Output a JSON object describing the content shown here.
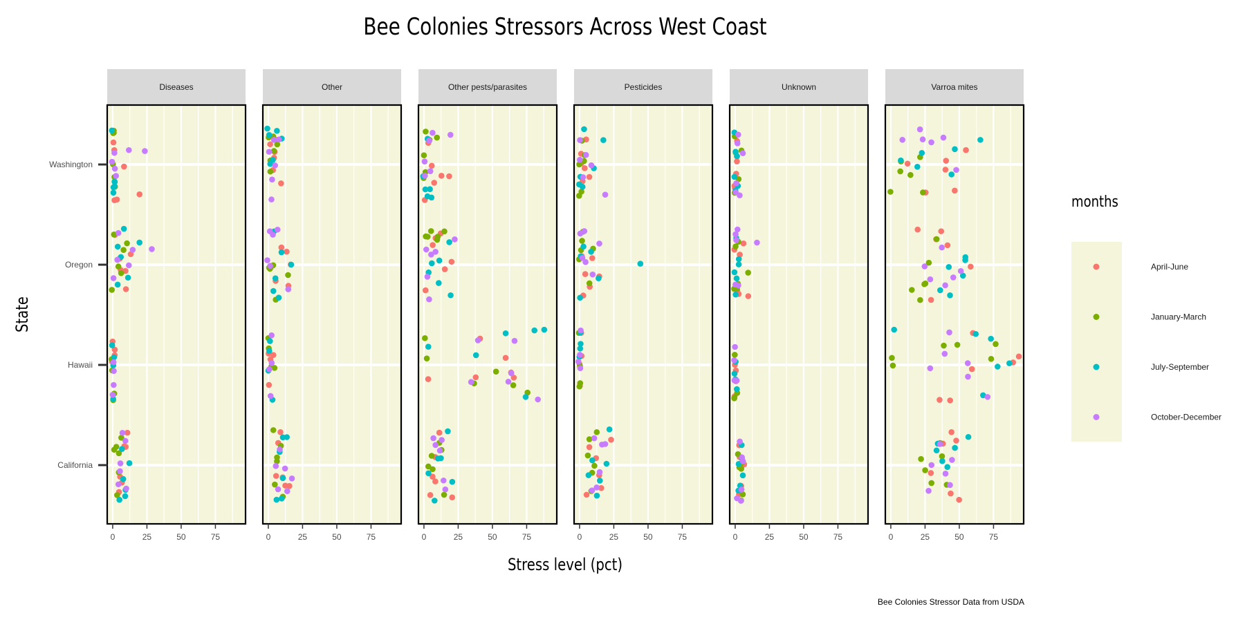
{
  "chart_data": {
    "type": "scatter",
    "title": "Bee Colonies Stressors Across West Coast",
    "xlabel": "Stress level (pct)",
    "ylabel": "State",
    "caption": "Bee Colonies Stressor Data from USDA",
    "x_ticks": [
      0,
      25,
      50,
      75
    ],
    "xlim": [
      -4,
      97
    ],
    "y_categories": [
      "Washington",
      "Oregon",
      "Hawaii",
      "California"
    ],
    "facets": [
      "Diseases",
      "Other",
      "Other pests/parasites",
      "Pesticides",
      "Unknown",
      "Varroa mites"
    ],
    "legend": {
      "title": "months",
      "placement": "right",
      "entries": [
        {
          "label": "April-June",
          "color": "#F8766D"
        },
        {
          "label": "January-March",
          "color": "#7CAE00"
        },
        {
          "label": "July-September",
          "color": "#00BFC4"
        },
        {
          "label": "October-December",
          "color": "#C77CFF"
        }
      ]
    },
    "panel_background": "#f5f5dc",
    "grid": true,
    "points": {
      "Diseases": [
        [
          "Washington",
          "April-June",
          [
            1,
            3,
            8,
            19,
            2,
            1
          ]
        ],
        [
          "Washington",
          "January-March",
          [
            0,
            1,
            2,
            1,
            0,
            0
          ]
        ],
        [
          "Washington",
          "July-September",
          [
            1,
            2,
            0,
            1,
            0,
            1
          ]
        ],
        [
          "Washington",
          "October-December",
          [
            2,
            3,
            12,
            23,
            1,
            0
          ]
        ],
        [
          "Oregon",
          "April-June",
          [
            5,
            10,
            13,
            9,
            6,
            2
          ]
        ],
        [
          "Oregon",
          "January-March",
          [
            4,
            8,
            1,
            10,
            0,
            6
          ]
        ],
        [
          "Oregon",
          "July-September",
          [
            3,
            6,
            11,
            20,
            8,
            4
          ]
        ],
        [
          "Oregon",
          "October-December",
          [
            3,
            12,
            15,
            28,
            4,
            0
          ]
        ],
        [
          "Hawaii",
          "April-June",
          [
            0,
            1,
            0,
            1
          ]
        ],
        [
          "Hawaii",
          "January-March",
          [
            0,
            1,
            0,
            1
          ]
        ],
        [
          "Hawaii",
          "July-September",
          [
            0,
            0,
            1,
            0
          ]
        ],
        [
          "Hawaii",
          "October-December",
          [
            0,
            0,
            1,
            0
          ]
        ],
        [
          "California",
          "April-June",
          [
            7,
            4,
            10,
            11,
            6,
            8
          ]
        ],
        [
          "California",
          "January-March",
          [
            1,
            5,
            3,
            2,
            6,
            4
          ]
        ],
        [
          "California",
          "July-September",
          [
            8,
            10,
            7,
            12,
            9,
            5
          ]
        ],
        [
          "California",
          "October-December",
          [
            6,
            9,
            4,
            7,
            5,
            10
          ]
        ]
      ],
      "Other": [
        [
          "Washington",
          "April-June",
          [
            6,
            4,
            2,
            10,
            3,
            5
          ]
        ],
        [
          "Washington",
          "January-March",
          [
            1,
            7,
            2,
            4,
            0,
            3
          ]
        ],
        [
          "Washington",
          "July-September",
          [
            9,
            1,
            3,
            6,
            0,
            2
          ]
        ],
        [
          "Washington",
          "October-December",
          [
            3,
            8,
            1,
            5,
            2,
            4
          ]
        ],
        [
          "Oregon",
          "April-June",
          [
            15,
            16,
            6,
            3,
            14,
            10
          ]
        ],
        [
          "Oregon",
          "January-March",
          [
            1,
            0,
            3,
            15,
            2,
            5
          ]
        ],
        [
          "Oregon",
          "July-September",
          [
            5,
            9,
            16,
            7,
            3,
            4
          ]
        ],
        [
          "Oregon",
          "October-December",
          [
            3,
            1,
            6,
            14,
            0,
            2
          ]
        ],
        [
          "Hawaii",
          "April-June",
          [
            1,
            2,
            0,
            3
          ]
        ],
        [
          "Hawaii",
          "January-March",
          [
            4,
            0,
            2,
            1
          ]
        ],
        [
          "Hawaii",
          "July-September",
          [
            2,
            1,
            3,
            0
          ]
        ],
        [
          "Hawaii",
          "October-December",
          [
            1,
            0,
            2,
            3
          ]
        ],
        [
          "California",
          "April-June",
          [
            5,
            8,
            12,
            15,
            9,
            11
          ]
        ],
        [
          "California",
          "January-March",
          [
            6,
            9,
            4,
            10,
            7,
            5
          ]
        ],
        [
          "California",
          "July-September",
          [
            10,
            14,
            8,
            6,
            11,
            9
          ]
        ],
        [
          "California",
          "October-December",
          [
            17,
            7,
            12,
            5,
            9,
            13
          ]
        ]
      ],
      "Other pests/parasites": [
        [
          "Washington",
          "April-June",
          [
            12,
            19,
            1,
            3,
            5,
            8
          ]
        ],
        [
          "Washington",
          "January-March",
          [
            2,
            0,
            9,
            1,
            4,
            0
          ]
        ],
        [
          "Washington",
          "July-September",
          [
            0,
            3,
            5,
            1,
            2,
            6
          ]
        ],
        [
          "Washington",
          "October-December",
          [
            1,
            5,
            20,
            4,
            0,
            6
          ]
        ],
        [
          "Oregon",
          "April-June",
          [
            20,
            9,
            12,
            1,
            15,
            7
          ]
        ],
        [
          "Oregon",
          "January-March",
          [
            2,
            6,
            10,
            15,
            9,
            3
          ]
        ],
        [
          "Oregon",
          "July-September",
          [
            10,
            12,
            18,
            20,
            5,
            3
          ]
        ],
        [
          "Oregon",
          "October-December",
          [
            2,
            5,
            22,
            4,
            1,
            9
          ]
        ],
        [
          "Hawaii",
          "April-June",
          [
            3,
            38,
            63,
            65,
            41,
            59
          ]
        ],
        [
          "Hawaii",
          "January-March",
          [
            1,
            37,
            52,
            65,
            76,
            2
          ]
        ],
        [
          "Hawaii",
          "July-September",
          [
            4,
            38,
            74,
            81,
            88,
            60
          ]
        ],
        [
          "Hawaii",
          "October-December",
          [
            35,
            40,
            66,
            83,
            61,
            64
          ]
        ],
        [
          "California",
          "April-June",
          [
            6,
            8,
            12,
            9,
            21,
            5
          ]
        ],
        [
          "California",
          "January-March",
          [
            5,
            11,
            15,
            6,
            3,
            13
          ]
        ],
        [
          "California",
          "July-September",
          [
            8,
            11,
            17,
            20,
            12,
            4
          ]
        ],
        [
          "California",
          "October-December",
          [
            7,
            13,
            16,
            11,
            9,
            15
          ]
        ]
      ],
      "Pesticides": [
        [
          "Washington",
          "April-June",
          [
            7,
            4,
            2,
            1,
            3,
            5
          ]
        ],
        [
          "Washington",
          "January-March",
          [
            0,
            2,
            4,
            1,
            3,
            0
          ]
        ],
        [
          "Washington",
          "July-September",
          [
            18,
            10,
            3,
            1,
            0,
            2
          ]
        ],
        [
          "Washington",
          "October-December",
          [
            9,
            19,
            2,
            4,
            0,
            1
          ]
        ],
        [
          "Oregon",
          "April-June",
          [
            10,
            14,
            3,
            7,
            2,
            4
          ]
        ],
        [
          "Oregon",
          "January-March",
          [
            8,
            10,
            1,
            3,
            0,
            2
          ]
        ],
        [
          "Oregon",
          "July-September",
          [
            45,
            9,
            1,
            14,
            3,
            0
          ]
        ],
        [
          "Oregon",
          "October-December",
          [
            14,
            2,
            9,
            3,
            1,
            5
          ]
        ],
        [
          "Hawaii",
          "April-June",
          [
            0,
            1,
            0,
            1
          ]
        ],
        [
          "Hawaii",
          "January-March",
          [
            0,
            1,
            0,
            0
          ]
        ],
        [
          "Hawaii",
          "July-September",
          [
            1,
            0,
            1,
            0
          ]
        ],
        [
          "Hawaii",
          "October-December",
          [
            0,
            1,
            0,
            1
          ]
        ],
        [
          "California",
          "April-June",
          [
            12,
            14,
            16,
            23,
            7,
            5
          ]
        ],
        [
          "California",
          "January-March",
          [
            6,
            9,
            11,
            7,
            12,
            8
          ]
        ],
        [
          "California",
          "July-September",
          [
            15,
            19,
            22,
            10,
            6,
            12
          ]
        ],
        [
          "California",
          "October-December",
          [
            14,
            18,
            10,
            12,
            9,
            16
          ]
        ]
      ],
      "Unknown": [
        [
          "Washington",
          "April-June",
          [
            0,
            1,
            0,
            2,
            1,
            0
          ]
        ],
        [
          "Washington",
          "January-March",
          [
            0,
            2,
            1,
            0,
            5,
            1
          ]
        ],
        [
          "Washington",
          "July-September",
          [
            0,
            1,
            0,
            2,
            0,
            1
          ]
        ],
        [
          "Washington",
          "October-December",
          [
            4,
            1,
            6,
            0,
            2,
            1
          ]
        ],
        [
          "Oregon",
          "April-June",
          [
            6,
            10,
            1,
            2,
            0,
            3
          ]
        ],
        [
          "Oregon",
          "January-March",
          [
            0,
            9,
            2,
            1,
            0,
            3
          ]
        ],
        [
          "Oregon",
          "July-September",
          [
            0,
            1,
            2,
            0,
            1,
            3
          ]
        ],
        [
          "Oregon",
          "October-December",
          [
            16,
            1,
            0,
            2,
            1,
            3
          ]
        ],
        [
          "Hawaii",
          "April-June",
          [
            0,
            1,
            0,
            0
          ]
        ],
        [
          "Hawaii",
          "January-March",
          [
            0,
            1,
            0,
            0
          ]
        ],
        [
          "Hawaii",
          "July-September",
          [
            0,
            0,
            1,
            0
          ]
        ],
        [
          "Hawaii",
          "October-December",
          [
            0,
            1,
            0,
            0
          ]
        ],
        [
          "California",
          "April-June",
          [
            3,
            5,
            4,
            2,
            6,
            3
          ]
        ],
        [
          "California",
          "January-March",
          [
            2,
            4,
            6,
            3,
            5,
            4
          ]
        ],
        [
          "California",
          "July-September",
          [
            4,
            6,
            2,
            5,
            3,
            4
          ]
        ],
        [
          "California",
          "October-December",
          [
            5,
            3,
            6,
            4,
            2,
            5
          ]
        ]
      ],
      "Varroa mites": [
        [
          "Washington",
          "April-June",
          [
            55,
            47,
            40,
            13,
            25,
            40
          ]
        ],
        [
          "Washington",
          "January-March",
          [
            8,
            23,
            15,
            22,
            0,
            7
          ]
        ],
        [
          "Washington",
          "July-September",
          [
            65,
            20,
            46,
            23,
            44,
            7
          ]
        ],
        [
          "Washington",
          "October-December",
          [
            39,
            9,
            48,
            22,
            24,
            29
          ]
        ],
        [
          "Oregon",
          "April-June",
          [
            19,
            37,
            42,
            29,
            33,
            58
          ]
        ],
        [
          "Oregon",
          "January-March",
          [
            21,
            28,
            15,
            33,
            25,
            24
          ]
        ],
        [
          "Oregon",
          "July-September",
          [
            54,
            52,
            43,
            36,
            55,
            43
          ]
        ],
        [
          "Oregon",
          "October-December",
          [
            28,
            45,
            25,
            40,
            51,
            37
          ]
        ],
        [
          "Hawaii",
          "April-June",
          [
            93,
            89,
            59,
            44,
            36,
            60
          ]
        ],
        [
          "Hawaii",
          "January-March",
          [
            38,
            74,
            0,
            1,
            77,
            48
          ]
        ],
        [
          "Hawaii",
          "July-September",
          [
            3,
            67,
            62,
            78,
            87,
            73
          ]
        ],
        [
          "Hawaii",
          "October-December",
          [
            57,
            70,
            40,
            57,
            28,
            43
          ]
        ],
        [
          "California",
          "April-June",
          [
            50,
            43,
            30,
            38,
            48,
            44
          ]
        ],
        [
          "California",
          "January-March",
          [
            25,
            41,
            37,
            29,
            22,
            36
          ]
        ],
        [
          "California",
          "July-September",
          [
            46,
            56,
            38,
            42,
            33,
            35
          ]
        ],
        [
          "California",
          "October-December",
          [
            40,
            45,
            28,
            36,
            44,
            30
          ]
        ]
      ]
    }
  }
}
